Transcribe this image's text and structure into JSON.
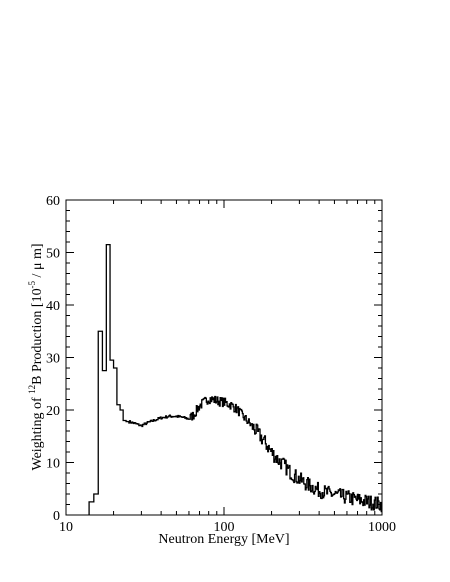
{
  "chart_data": {
    "type": "line",
    "style": "step",
    "xlabel": "Neutron Energy [MeV]",
    "ylabel": {
      "pre": "Weighting of ",
      "sup1": "12",
      "mid": "B Production [10",
      "sup2": "-5",
      "post": " / μ m]"
    },
    "xscale": "log",
    "xlim": [
      10,
      1000
    ],
    "ylim": [
      0,
      60
    ],
    "x_ticks": [
      10,
      100,
      1000
    ],
    "x_tick_labels": [
      "10",
      "100",
      "1000"
    ],
    "y_ticks": [
      0,
      10,
      20,
      30,
      40,
      50,
      60
    ],
    "y_tick_labels": [
      "0",
      "10",
      "20",
      "30",
      "40",
      "50",
      "60"
    ],
    "grid": false,
    "legend": "none",
    "line_color": "#000000",
    "series": [
      {
        "x": [
          14,
          15,
          16,
          17,
          18,
          19,
          20,
          21,
          22,
          23,
          24,
          25,
          27,
          30,
          33,
          36,
          40,
          45,
          50,
          55,
          60,
          65,
          70,
          75,
          80,
          85,
          90,
          95,
          100,
          105,
          110,
          115,
          120,
          125,
          130,
          140,
          150,
          160,
          170,
          180,
          190,
          200,
          220,
          240,
          260,
          280,
          300,
          330,
          360,
          400,
          450,
          500,
          550,
          600,
          650,
          700,
          750,
          800,
          850,
          900,
          950,
          1000
        ],
        "y": [
          2.5,
          4,
          35,
          27.5,
          51.5,
          29.5,
          28,
          21,
          20,
          18,
          17.8,
          17.8,
          17.5,
          17,
          17.6,
          18,
          18.5,
          18.8,
          18.8,
          18.6,
          18.3,
          19.2,
          20.8,
          21.5,
          22.2,
          22,
          21.8,
          21.6,
          21.5,
          21.2,
          21,
          20.6,
          20.2,
          19.7,
          19,
          18,
          17,
          16,
          15,
          14,
          13,
          12,
          10.5,
          9.5,
          8.3,
          7.5,
          6.8,
          6,
          5.4,
          4.7,
          4.2,
          3.9,
          3.6,
          3.4,
          3.1,
          2.9,
          2.7,
          2.6,
          2.4,
          2.3,
          2.1,
          2
        ]
      }
    ]
  }
}
